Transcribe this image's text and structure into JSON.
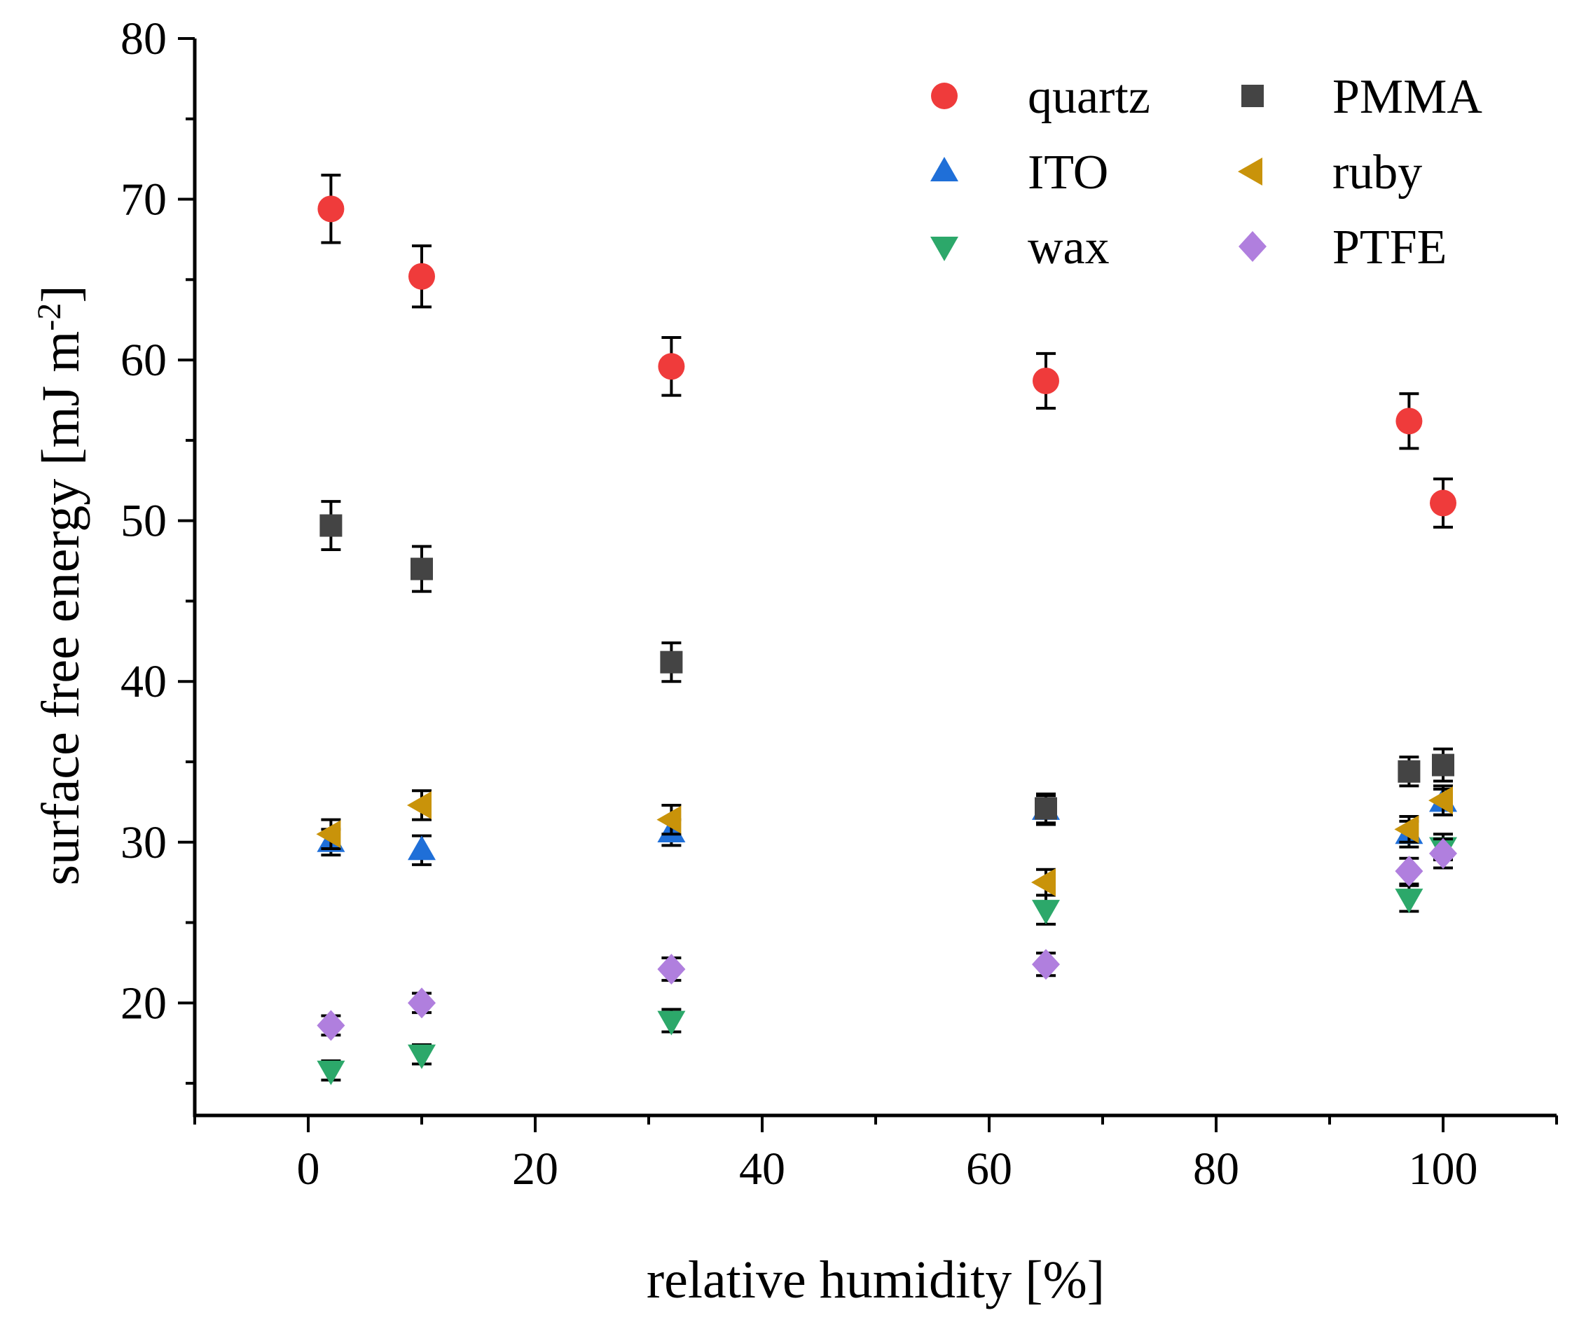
{
  "chart_data": {
    "type": "scatter",
    "xlabel": "relative humidity [%]",
    "ylabel": "surface free energy [mJ m",
    "ylabel_superscript": "-2",
    "ylabel_suffix": "]",
    "xlim": [
      -10,
      110
    ],
    "ylim": [
      13,
      80
    ],
    "x_ticks": [
      0,
      20,
      40,
      60,
      80,
      100
    ],
    "y_ticks": [
      20,
      30,
      40,
      50,
      60,
      70,
      80
    ],
    "x_tick_labels": [
      "0",
      "20",
      "40",
      "60",
      "80",
      "100"
    ],
    "y_tick_labels": [
      "20",
      "30",
      "40",
      "50",
      "60",
      "70",
      "80"
    ],
    "legend_placement": "top-right",
    "legend_columns": 2,
    "grid": false,
    "error_bars": true,
    "series": [
      {
        "name": "quartz",
        "marker": "circle",
        "color": "#EF3B3B",
        "x": [
          2,
          10,
          32,
          65,
          97,
          100
        ],
        "y": [
          69.4,
          65.2,
          59.6,
          58.7,
          56.2,
          51.1
        ],
        "err": [
          2.1,
          1.9,
          1.8,
          1.7,
          1.7,
          1.5
        ]
      },
      {
        "name": "ITO",
        "marker": "triangle-up",
        "color": "#1F6FD8",
        "x": [
          2,
          10,
          32,
          65,
          97,
          100
        ],
        "y": [
          30.0,
          29.5,
          30.6,
          32.0,
          30.5,
          32.5
        ],
        "err": [
          0.8,
          0.9,
          0.8,
          0.9,
          0.8,
          0.8
        ]
      },
      {
        "name": "wax",
        "marker": "triangle-down",
        "color": "#2CA86A",
        "x": [
          2,
          10,
          32,
          65,
          97,
          100
        ],
        "y": [
          15.8,
          16.8,
          18.9,
          25.8,
          26.5,
          29.7
        ],
        "err": [
          0.6,
          0.6,
          0.7,
          0.9,
          0.8,
          0.8
        ]
      },
      {
        "name": "PMMA",
        "marker": "square",
        "color": "#444444",
        "x": [
          2,
          10,
          32,
          65,
          97,
          100
        ],
        "y": [
          49.7,
          47.0,
          41.2,
          32.1,
          34.4,
          34.8
        ],
        "err": [
          1.5,
          1.4,
          1.2,
          0.9,
          0.9,
          1.0
        ]
      },
      {
        "name": "ruby",
        "marker": "triangle-left",
        "color": "#C9930A",
        "x": [
          2,
          10,
          32,
          65,
          97,
          100
        ],
        "y": [
          30.5,
          32.3,
          31.4,
          27.5,
          30.8,
          32.6
        ],
        "err": [
          0.9,
          0.9,
          0.9,
          0.8,
          0.8,
          0.9
        ]
      },
      {
        "name": "PTFE",
        "marker": "diamond",
        "color": "#B07FDE",
        "x": [
          2,
          10,
          32,
          65,
          97,
          100
        ],
        "y": [
          18.6,
          20.0,
          22.1,
          22.4,
          28.2,
          29.3
        ],
        "err": [
          0.6,
          0.6,
          0.7,
          0.7,
          0.8,
          0.9
        ]
      }
    ]
  }
}
